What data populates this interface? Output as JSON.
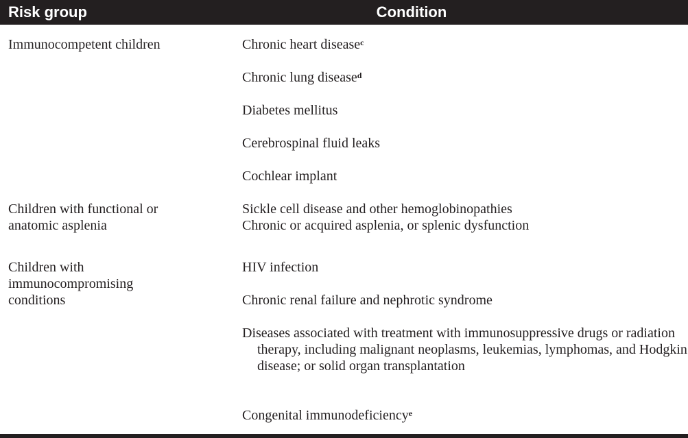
{
  "header": {
    "risk_group": "Risk group",
    "condition": "Condition"
  },
  "groups": [
    {
      "risk_group": "Immunocompetent children",
      "conditions": [
        {
          "text": "Chronic heart disease",
          "note": "c"
        },
        {
          "text": "Chronic lung disease",
          "note": "d"
        },
        {
          "text": "Diabetes mellitus"
        },
        {
          "text": "Cerebrospinal fluid leaks"
        },
        {
          "text": "Cochlear implant"
        }
      ]
    },
    {
      "risk_group": "Children with functional or anatomic asplenia",
      "conditions": [
        {
          "text": "Sickle cell disease and other hemoglobinopathies"
        },
        {
          "text": "Chronic or acquired asplenia, or splenic dysfunction"
        }
      ]
    },
    {
      "risk_group": "Children with immunocompromising conditions",
      "conditions": [
        {
          "text": "HIV infection"
        },
        {
          "text": "Chronic renal failure and nephrotic syndrome"
        },
        {
          "text": "Diseases associated with treatment with immunosuppressive drugs or radiation therapy, including malignant neoplasms, leukemias, lymphomas, and Hodgkin disease; or solid organ transplantation"
        },
        {
          "text": "Congenital immunodeficiency",
          "note": "e"
        }
      ]
    }
  ]
}
